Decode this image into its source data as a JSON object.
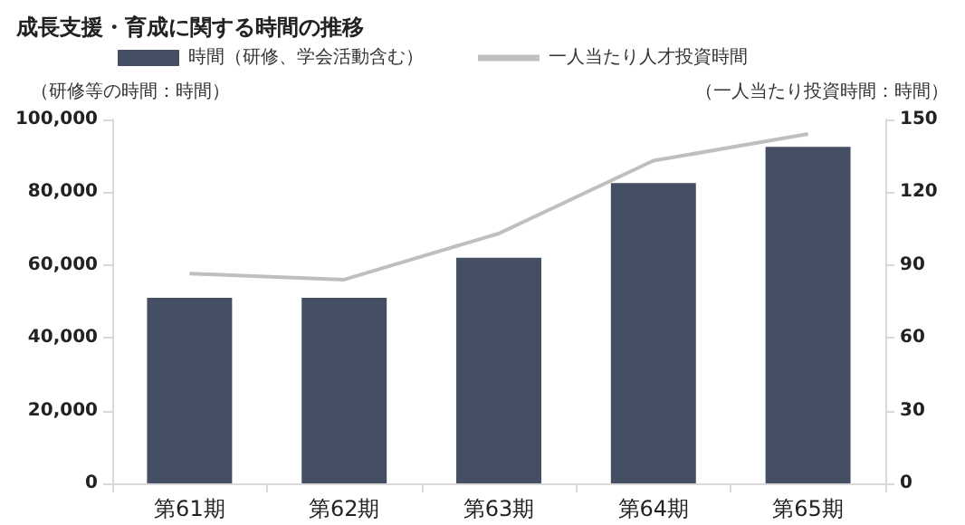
{
  "chart_data": {
    "type": "bar",
    "title": "成長支援・育成に関する時間の推移",
    "ylabel": "（研修等の時間：時間）",
    "y2label": "（一人当たり投資時間：時間）",
    "categories": [
      "第61期",
      "第62期",
      "第63期",
      "第64期",
      "第65期"
    ],
    "series": [
      {
        "name": "時間（研修、学会活動含む）",
        "color": "#444f64",
        "values": [
          51000,
          51000,
          62000,
          82500,
          92500
        ]
      },
      {
        "name": "一人当たり人才投資時間",
        "type": "line",
        "axis": "y2",
        "color": "#bfbfbf",
        "marker": "none",
        "values": [
          86.5,
          84,
          103,
          133,
          144
        ]
      }
    ],
    "ylim": [
      0,
      100000
    ],
    "yticks": [
      0,
      {
        "value": 20000,
        "label": "20,000"
      },
      {
        "value": 40000,
        "label": "40,000"
      },
      {
        "value": 60000,
        "label": "60,000"
      },
      {
        "value": 80000,
        "label": "80,000"
      },
      {
        "value": 100000,
        "label": "100,000"
      }
    ],
    "y2lim": [
      0,
      150
    ],
    "y2ticks": [
      0,
      30,
      60,
      90,
      120,
      150
    ],
    "grid": false,
    "legend": "top"
  }
}
